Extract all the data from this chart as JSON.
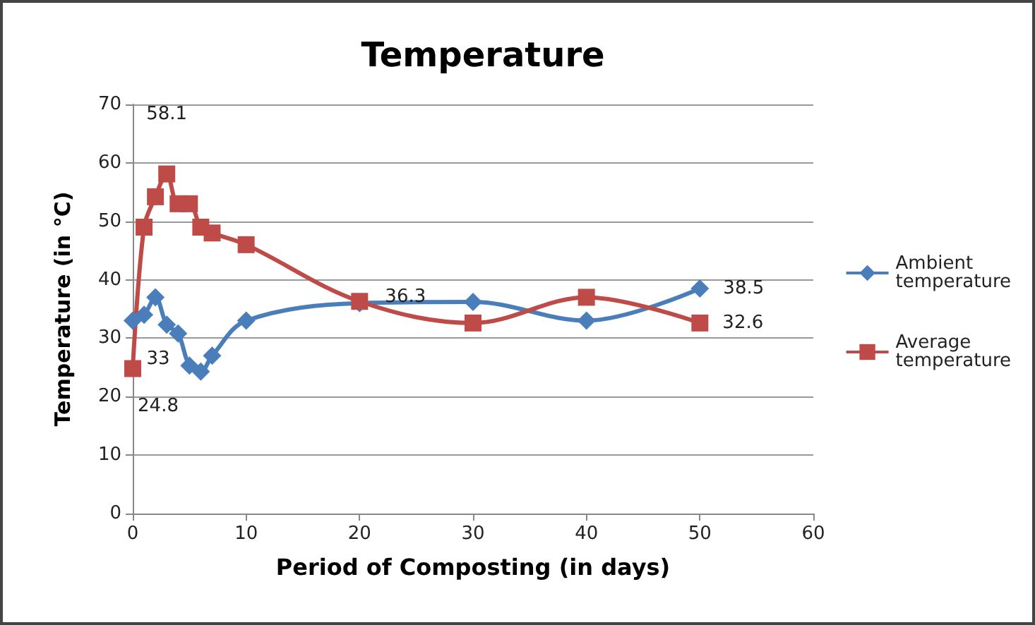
{
  "chart_data": {
    "type": "line",
    "title": "Temperature",
    "xlabel": "Period of Composting (in days)",
    "ylabel": "Temperature (in °C)",
    "xlim": [
      0,
      60
    ],
    "xticks": [
      0,
      10,
      20,
      30,
      40,
      50,
      60
    ],
    "ylim": [
      0,
      70
    ],
    "yticks": [
      0,
      10,
      20,
      30,
      40,
      50,
      60,
      70
    ],
    "grid": "y",
    "legend": "right",
    "series": [
      {
        "name": "Ambient temperature",
        "color": "#4a7ebb",
        "marker": "diamond",
        "x": [
          0,
          1,
          2,
          3,
          4,
          5,
          6,
          7,
          10,
          20,
          30,
          40,
          50
        ],
        "values": [
          33,
          34,
          37,
          32.3,
          30.8,
          25.3,
          24.3,
          27,
          33,
          36,
          36.2,
          33,
          38.5
        ],
        "value_labels": [
          "33",
          null,
          null,
          null,
          null,
          null,
          null,
          null,
          null,
          null,
          null,
          null,
          "38.5"
        ]
      },
      {
        "name": "Average temperature",
        "color": "#be4b48",
        "marker": "square",
        "x": [
          0,
          1,
          2,
          3,
          4,
          5,
          6,
          7,
          10,
          20,
          30,
          40,
          50
        ],
        "values": [
          24.8,
          49,
          54.2,
          58.1,
          53,
          53,
          49,
          48,
          46,
          36.3,
          32.6,
          37,
          32.6
        ],
        "value_labels": [
          "24.8",
          null,
          null,
          "58.1",
          null,
          null,
          null,
          null,
          null,
          "36.3",
          null,
          null,
          "32.6"
        ]
      }
    ]
  }
}
